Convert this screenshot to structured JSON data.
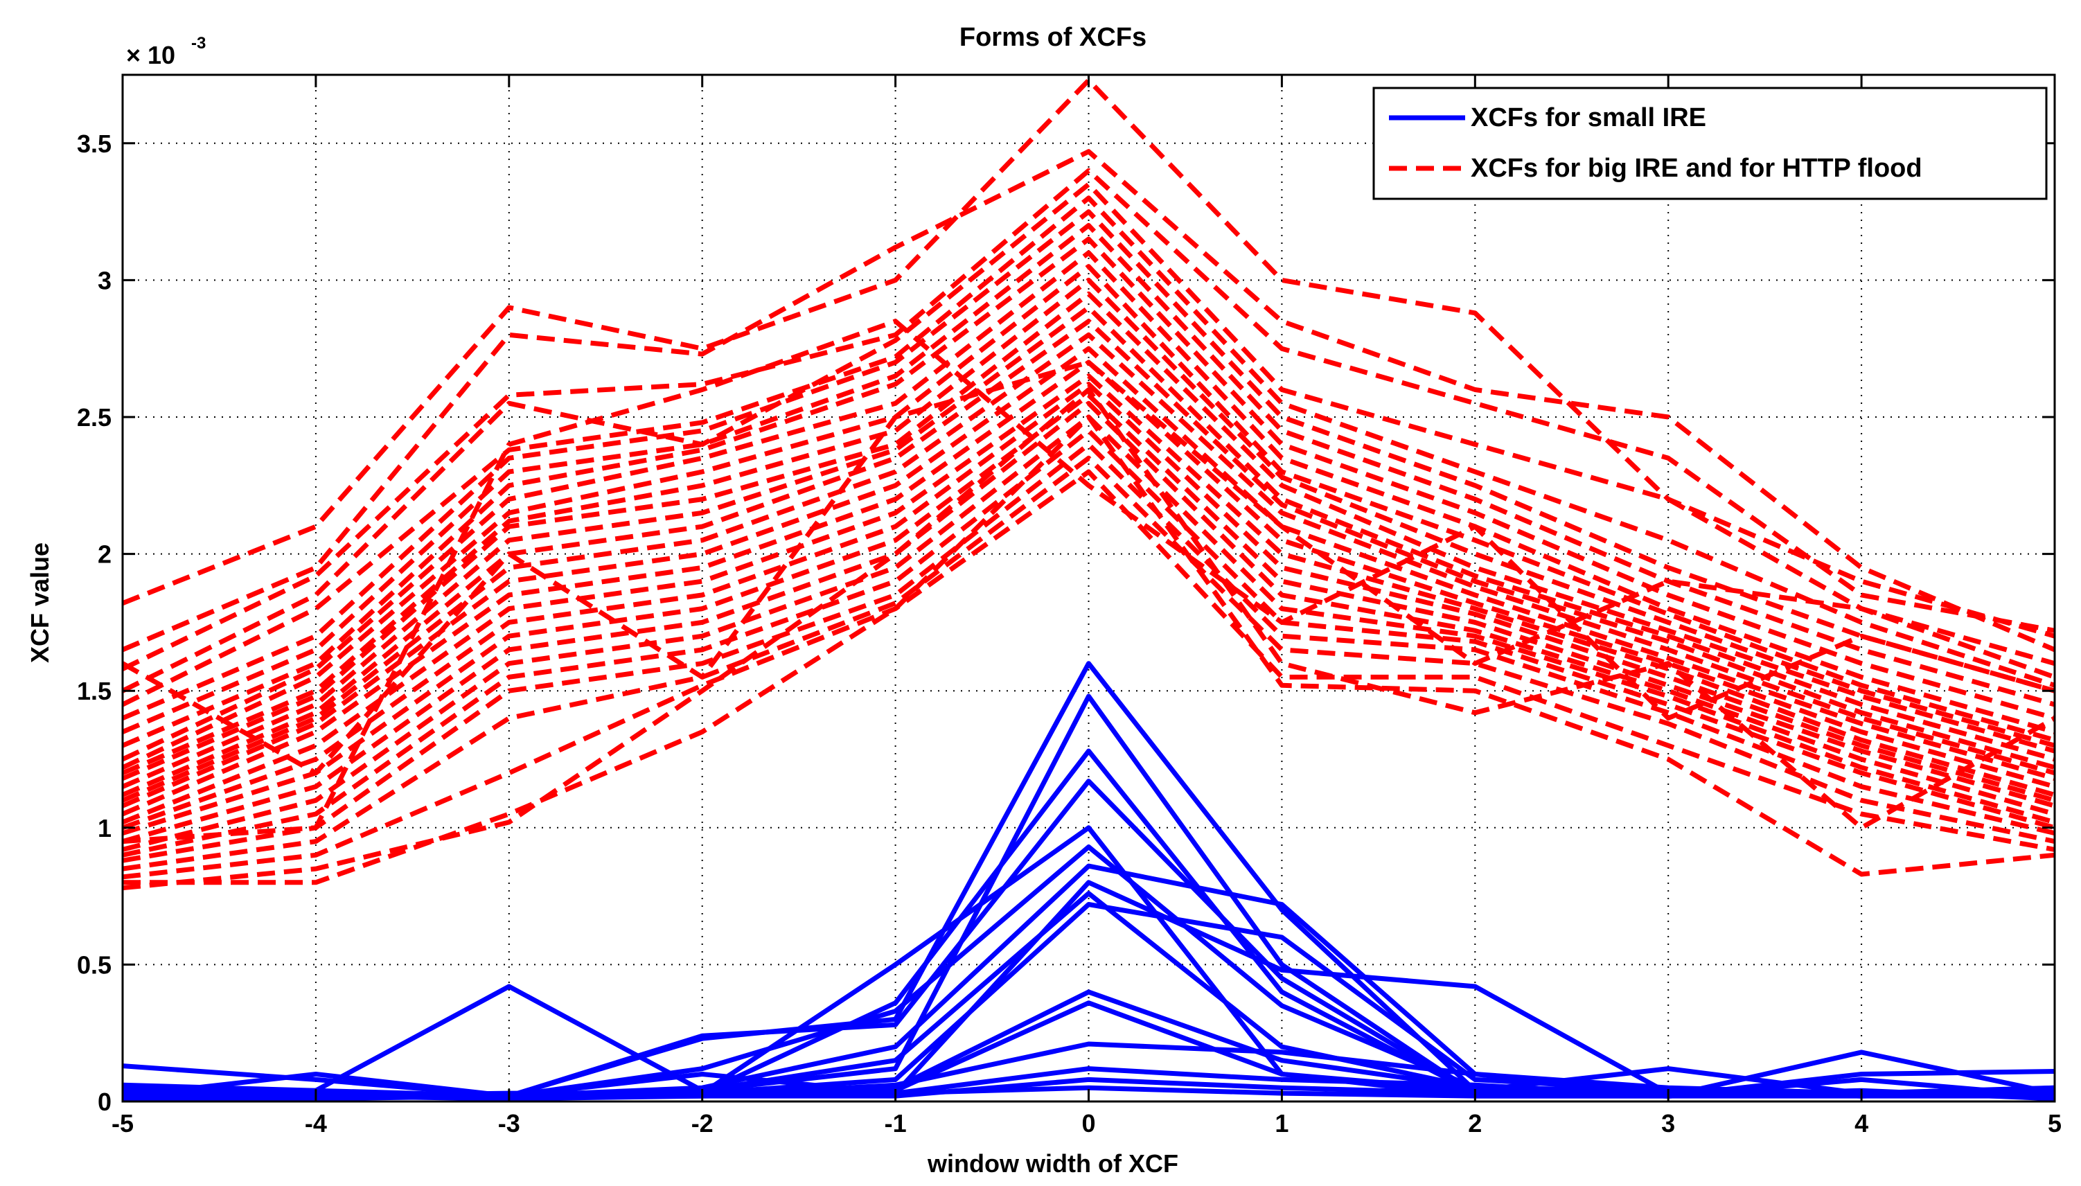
{
  "chart_data": {
    "type": "line",
    "title": "Forms of XCFs",
    "xlabel": "window width of XCF",
    "ylabel": "XCF value",
    "y_multiplier": "× 10",
    "y_multiplier_exp": "-3",
    "xlim": [
      -5,
      5
    ],
    "ylim": [
      0,
      3.75
    ],
    "x_ticks": [
      -5,
      -4,
      -3,
      -2,
      -1,
      0,
      1,
      2,
      3,
      4,
      5
    ],
    "x_tick_labels": [
      "-5",
      "-4",
      "-3",
      "-2",
      "-1",
      "0",
      "1",
      "2",
      "3",
      "4",
      "5"
    ],
    "y_ticks": [
      0,
      0.5,
      1,
      1.5,
      2,
      2.5,
      3,
      3.5
    ],
    "y_tick_labels": [
      "0",
      "0.5",
      "1",
      "1.5",
      "2",
      "2.5",
      "3",
      "3.5"
    ],
    "grid": true,
    "legend_position": "top-right",
    "x": [
      -5,
      -4,
      -3,
      -2,
      -1,
      0,
      1,
      2,
      3,
      4,
      5
    ],
    "series_groups": [
      {
        "name": "XCFs for small IRE",
        "color": "#0000FF",
        "style": "solid",
        "series": [
          [
            0.13,
            0.08,
            0.02,
            0.23,
            0.3,
            1.6,
            0.7,
            0.04,
            0.02,
            0.03,
            0.05
          ],
          [
            0.06,
            0.04,
            0.42,
            0.04,
            0.12,
            1.48,
            0.5,
            0.03,
            0.02,
            0.03,
            0.04
          ],
          [
            0.02,
            0.1,
            0.02,
            0.03,
            0.36,
            1.28,
            0.4,
            0.03,
            0.02,
            0.02,
            0.05
          ],
          [
            0.03,
            0.03,
            0.02,
            0.24,
            0.28,
            1.17,
            0.45,
            0.03,
            0.02,
            0.03,
            0.04
          ],
          [
            0.02,
            0.02,
            0.02,
            0.03,
            0.5,
            1.0,
            0.1,
            0.02,
            0.02,
            0.03,
            0.04
          ],
          [
            0.05,
            0.03,
            0.02,
            0.12,
            0.33,
            0.93,
            0.35,
            0.05,
            0.04,
            0.02,
            0.03
          ],
          [
            0.04,
            0.02,
            0.02,
            0.05,
            0.2,
            0.86,
            0.72,
            0.1,
            0.05,
            0.03,
            0.03
          ],
          [
            0.02,
            0.03,
            0.02,
            0.1,
            0.03,
            0.8,
            0.48,
            0.42,
            0.03,
            0.02,
            0.02
          ],
          [
            0.03,
            0.02,
            0.02,
            0.04,
            0.15,
            0.76,
            0.2,
            0.05,
            0.02,
            0.18,
            0.03
          ],
          [
            0.02,
            0.02,
            0.03,
            0.03,
            0.08,
            0.72,
            0.6,
            0.08,
            0.04,
            0.03,
            0.02
          ],
          [
            0.03,
            0.04,
            0.02,
            0.04,
            0.05,
            0.4,
            0.15,
            0.05,
            0.03,
            0.02,
            0.03
          ],
          [
            0.02,
            0.03,
            0.02,
            0.03,
            0.04,
            0.36,
            0.1,
            0.04,
            0.12,
            0.03,
            0.02
          ],
          [
            0.03,
            0.02,
            0.02,
            0.02,
            0.06,
            0.21,
            0.18,
            0.1,
            0.02,
            0.1,
            0.11
          ],
          [
            0.02,
            0.02,
            0.02,
            0.03,
            0.03,
            0.12,
            0.08,
            0.06,
            0.02,
            0.08,
            0.02
          ],
          [
            0.01,
            0.01,
            0.02,
            0.02,
            0.02,
            0.08,
            0.05,
            0.03,
            0.02,
            0.04,
            0.01
          ],
          [
            0.01,
            0.02,
            0.01,
            0.02,
            0.03,
            0.05,
            0.03,
            0.02,
            0.02,
            0.03,
            0.02
          ]
        ]
      },
      {
        "name": "XCFs for big IRE and for HTTP flood",
        "color": "#FF0000",
        "style": "dashed",
        "series": [
          [
            1.82,
            2.1,
            2.9,
            2.75,
            3.0,
            3.73,
            3.0,
            2.88,
            2.2,
            1.9,
            1.7
          ],
          [
            1.65,
            1.95,
            2.8,
            2.73,
            3.12,
            3.47,
            2.85,
            2.6,
            2.5,
            1.95,
            1.65
          ],
          [
            1.58,
            1.92,
            2.58,
            2.62,
            2.8,
            3.4,
            2.75,
            2.55,
            2.35,
            1.85,
            1.72
          ],
          [
            1.5,
            1.85,
            2.55,
            2.4,
            2.78,
            3.35,
            2.6,
            2.4,
            2.2,
            1.8,
            1.55
          ],
          [
            1.45,
            1.8,
            2.38,
            2.48,
            2.72,
            3.3,
            2.55,
            2.3,
            2.05,
            1.75,
            1.52
          ],
          [
            1.4,
            1.7,
            2.35,
            2.45,
            2.7,
            3.25,
            2.5,
            2.25,
            1.95,
            1.7,
            1.5
          ],
          [
            1.35,
            1.65,
            2.3,
            2.4,
            2.65,
            3.2,
            2.45,
            2.2,
            1.9,
            1.65,
            1.45
          ],
          [
            1.3,
            1.6,
            2.25,
            2.38,
            2.62,
            3.15,
            2.4,
            2.15,
            1.85,
            1.6,
            1.4
          ],
          [
            1.25,
            1.58,
            2.2,
            2.35,
            2.55,
            3.1,
            2.35,
            2.1,
            1.8,
            1.55,
            1.35
          ],
          [
            1.22,
            1.55,
            2.15,
            2.3,
            2.5,
            3.05,
            2.3,
            2.05,
            1.78,
            1.52,
            1.32
          ],
          [
            1.2,
            1.5,
            2.12,
            2.25,
            2.45,
            3.0,
            2.28,
            2.0,
            1.75,
            1.5,
            1.3
          ],
          [
            1.18,
            1.48,
            2.1,
            2.2,
            2.4,
            2.95,
            2.25,
            1.95,
            1.72,
            1.48,
            1.28
          ],
          [
            1.15,
            1.45,
            2.05,
            2.15,
            2.38,
            2.9,
            2.2,
            1.92,
            1.7,
            1.45,
            1.25
          ],
          [
            1.12,
            1.42,
            2.0,
            2.1,
            2.35,
            2.85,
            2.18,
            1.9,
            1.68,
            1.42,
            1.22
          ],
          [
            1.1,
            1.4,
            1.95,
            2.05,
            2.3,
            2.8,
            2.15,
            1.88,
            1.65,
            1.4,
            1.2
          ],
          [
            1.08,
            1.38,
            1.9,
            2.0,
            2.25,
            2.75,
            2.1,
            1.85,
            1.62,
            1.38,
            1.18
          ],
          [
            1.05,
            1.35,
            1.85,
            1.95,
            2.2,
            2.7,
            2.05,
            1.82,
            1.6,
            1.35,
            1.15
          ],
          [
            1.02,
            1.3,
            1.8,
            1.9,
            2.15,
            2.65,
            2.0,
            1.8,
            1.58,
            1.32,
            1.12
          ],
          [
            1.0,
            1.25,
            1.75,
            1.85,
            2.1,
            2.62,
            1.95,
            1.78,
            1.55,
            1.3,
            1.1
          ],
          [
            0.98,
            1.2,
            1.7,
            1.8,
            2.05,
            2.58,
            1.9,
            1.75,
            1.52,
            1.28,
            1.08
          ],
          [
            0.95,
            1.15,
            1.65,
            1.75,
            2.0,
            2.55,
            1.85,
            1.72,
            1.5,
            1.25,
            1.05
          ],
          [
            0.92,
            1.1,
            1.6,
            1.7,
            1.95,
            2.5,
            1.8,
            1.7,
            1.48,
            1.22,
            1.02
          ],
          [
            0.9,
            1.05,
            1.55,
            1.65,
            1.9,
            2.45,
            1.75,
            1.68,
            1.45,
            1.2,
            1.0
          ],
          [
            0.88,
            1.0,
            1.5,
            1.6,
            1.85,
            2.4,
            1.7,
            1.65,
            1.42,
            1.15,
            0.98
          ],
          [
            0.85,
            0.95,
            1.4,
            1.55,
            1.82,
            2.35,
            1.65,
            1.6,
            1.38,
            1.1,
            0.95
          ],
          [
            0.82,
            0.9,
            1.2,
            1.52,
            1.8,
            2.3,
            1.55,
            1.55,
            1.3,
            1.05,
            0.92
          ],
          [
            0.8,
            0.8,
            1.05,
            1.35,
            1.8,
            2.5,
            1.52,
            1.5,
            1.25,
            0.83,
            0.9
          ],
          [
            0.78,
            0.85,
            1.02,
            1.5,
            2.0,
            2.6,
            1.6,
            1.42,
            1.6,
            1.0,
            1.4
          ],
          [
            1.6,
            1.2,
            2.0,
            1.55,
            2.5,
            2.7,
            2.1,
            1.6,
            1.9,
            1.8,
            1.6
          ],
          [
            0.95,
            1.0,
            2.4,
            2.6,
            2.85,
            2.25,
            1.75,
            2.1,
            1.4,
            1.7,
            1.5
          ]
        ]
      }
    ]
  }
}
